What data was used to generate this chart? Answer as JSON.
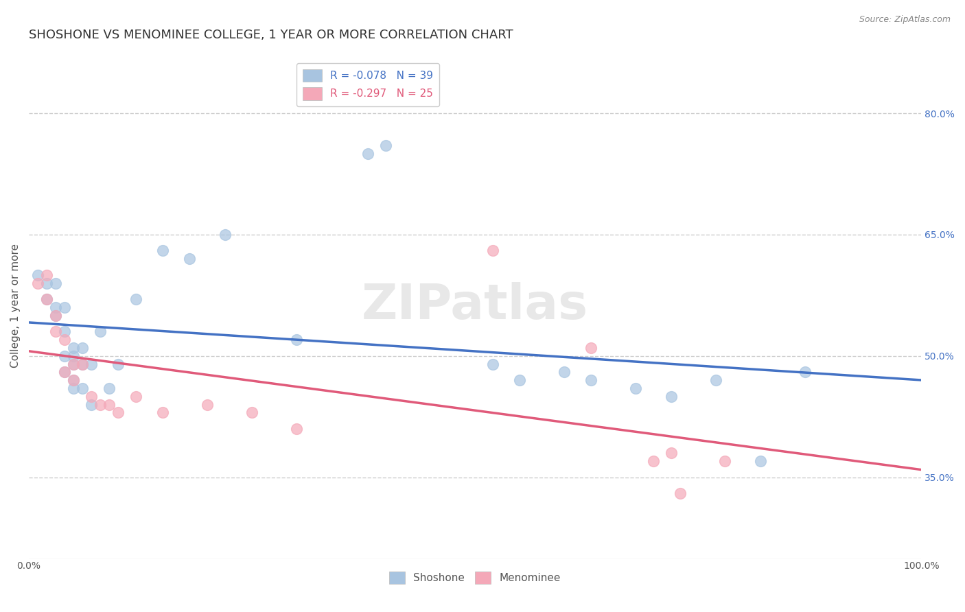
{
  "title": "SHOSHONE VS MENOMINEE COLLEGE, 1 YEAR OR MORE CORRELATION CHART",
  "source_text": "Source: ZipAtlas.com",
  "ylabel": "College, 1 year or more",
  "xlim": [
    0.0,
    1.0
  ],
  "ylim": [
    0.25,
    0.875
  ],
  "yticks": [
    0.35,
    0.5,
    0.65,
    0.8
  ],
  "ytick_labels": [
    "35.0%",
    "50.0%",
    "65.0%",
    "80.0%"
  ],
  "xticks": [
    0.0,
    1.0
  ],
  "xtick_labels": [
    "0.0%",
    "100.0%"
  ],
  "shoshone_color": "#a8c4e0",
  "menominee_color": "#f4a8b8",
  "shoshone_line_color": "#4472c4",
  "menominee_line_color": "#e05a7a",
  "background_color": "#ffffff",
  "grid_color": "#cccccc",
  "shoshone_x": [
    0.01,
    0.02,
    0.02,
    0.03,
    0.03,
    0.03,
    0.04,
    0.04,
    0.04,
    0.04,
    0.05,
    0.05,
    0.05,
    0.05,
    0.05,
    0.06,
    0.06,
    0.06,
    0.07,
    0.07,
    0.08,
    0.09,
    0.1,
    0.12,
    0.15,
    0.18,
    0.22,
    0.3,
    0.38,
    0.4,
    0.52,
    0.55,
    0.6,
    0.63,
    0.68,
    0.72,
    0.77,
    0.82,
    0.87
  ],
  "shoshone_y": [
    0.6,
    0.59,
    0.57,
    0.56,
    0.55,
    0.59,
    0.56,
    0.53,
    0.5,
    0.48,
    0.51,
    0.5,
    0.49,
    0.47,
    0.46,
    0.51,
    0.49,
    0.46,
    0.49,
    0.44,
    0.53,
    0.46,
    0.49,
    0.57,
    0.63,
    0.62,
    0.65,
    0.52,
    0.75,
    0.76,
    0.49,
    0.47,
    0.48,
    0.47,
    0.46,
    0.45,
    0.47,
    0.37,
    0.48
  ],
  "menominee_x": [
    0.01,
    0.02,
    0.02,
    0.03,
    0.03,
    0.04,
    0.04,
    0.05,
    0.05,
    0.06,
    0.07,
    0.08,
    0.09,
    0.1,
    0.12,
    0.15,
    0.2,
    0.25,
    0.3,
    0.52,
    0.63,
    0.7,
    0.72,
    0.73,
    0.78
  ],
  "menominee_y": [
    0.59,
    0.6,
    0.57,
    0.55,
    0.53,
    0.52,
    0.48,
    0.49,
    0.47,
    0.49,
    0.45,
    0.44,
    0.44,
    0.43,
    0.45,
    0.43,
    0.44,
    0.43,
    0.41,
    0.63,
    0.51,
    0.37,
    0.38,
    0.33,
    0.37
  ],
  "watermark": "ZIPatlas",
  "legend_shoshone_label": "R = -0.078   N = 39",
  "legend_menominee_label": "R = -0.297   N = 25",
  "title_fontsize": 13,
  "axis_label_fontsize": 11,
  "tick_fontsize": 10,
  "legend_fontsize": 11
}
